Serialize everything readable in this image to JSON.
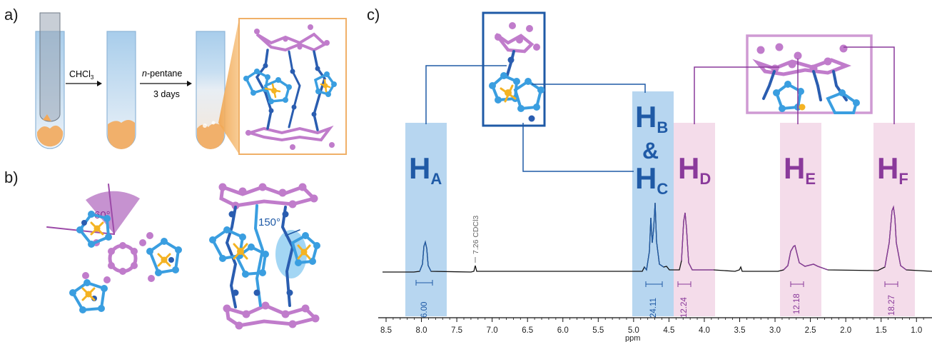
{
  "panels": {
    "a": "a)",
    "b": "b)",
    "c": "c)"
  },
  "panel_a": {
    "step1_label": "CHCl3",
    "step1_sub": "3",
    "step1_main": "CHCl",
    "step2_italic": "n",
    "step2_label": "-pentane",
    "step2_time": "3 days"
  },
  "panel_b": {
    "angle_left": "60°",
    "angle_right": "150°"
  },
  "panel_c": {
    "solvent_label": "7.26 CDCl3",
    "x_axis_label": "ppm",
    "signals": [
      {
        "id": "A",
        "main": "H",
        "sub": "A",
        "integral": "6.00",
        "color": "blue"
      },
      {
        "id": "BC",
        "main": "H",
        "sub": "B",
        "amp": "&",
        "main2": "H",
        "sub2": "C",
        "integral": "24.11",
        "color": "blue"
      },
      {
        "id": "D",
        "main": "H",
        "sub": "D",
        "integral": "12.24",
        "color": "purple"
      },
      {
        "id": "E",
        "main": "H",
        "sub": "E",
        "integral": "12.18",
        "color": "purple"
      },
      {
        "id": "F",
        "main": "H",
        "sub": "F",
        "integral": "18.27",
        "color": "purple"
      }
    ],
    "ticks": [
      "8.5",
      "8.0",
      "7.5",
      "7.0",
      "6.5",
      "6.0",
      "5.5",
      "5.0",
      "4.5",
      "4.0",
      "3.5",
      "3.0",
      "2.5",
      "2.0",
      "1.5",
      "1.0"
    ]
  },
  "colors": {
    "blue_band": "#b7d6f0",
    "pink_band": "#f4dcea",
    "blue_text": "#1f5aa6",
    "purple_text": "#8a3a9b",
    "cage_blue": "#3a9ee0",
    "cage_dark": "#2a5db0",
    "cage_purple": "#c07ccb",
    "metal": "#f4b323",
    "tube_fill": "#f1b06b"
  }
}
